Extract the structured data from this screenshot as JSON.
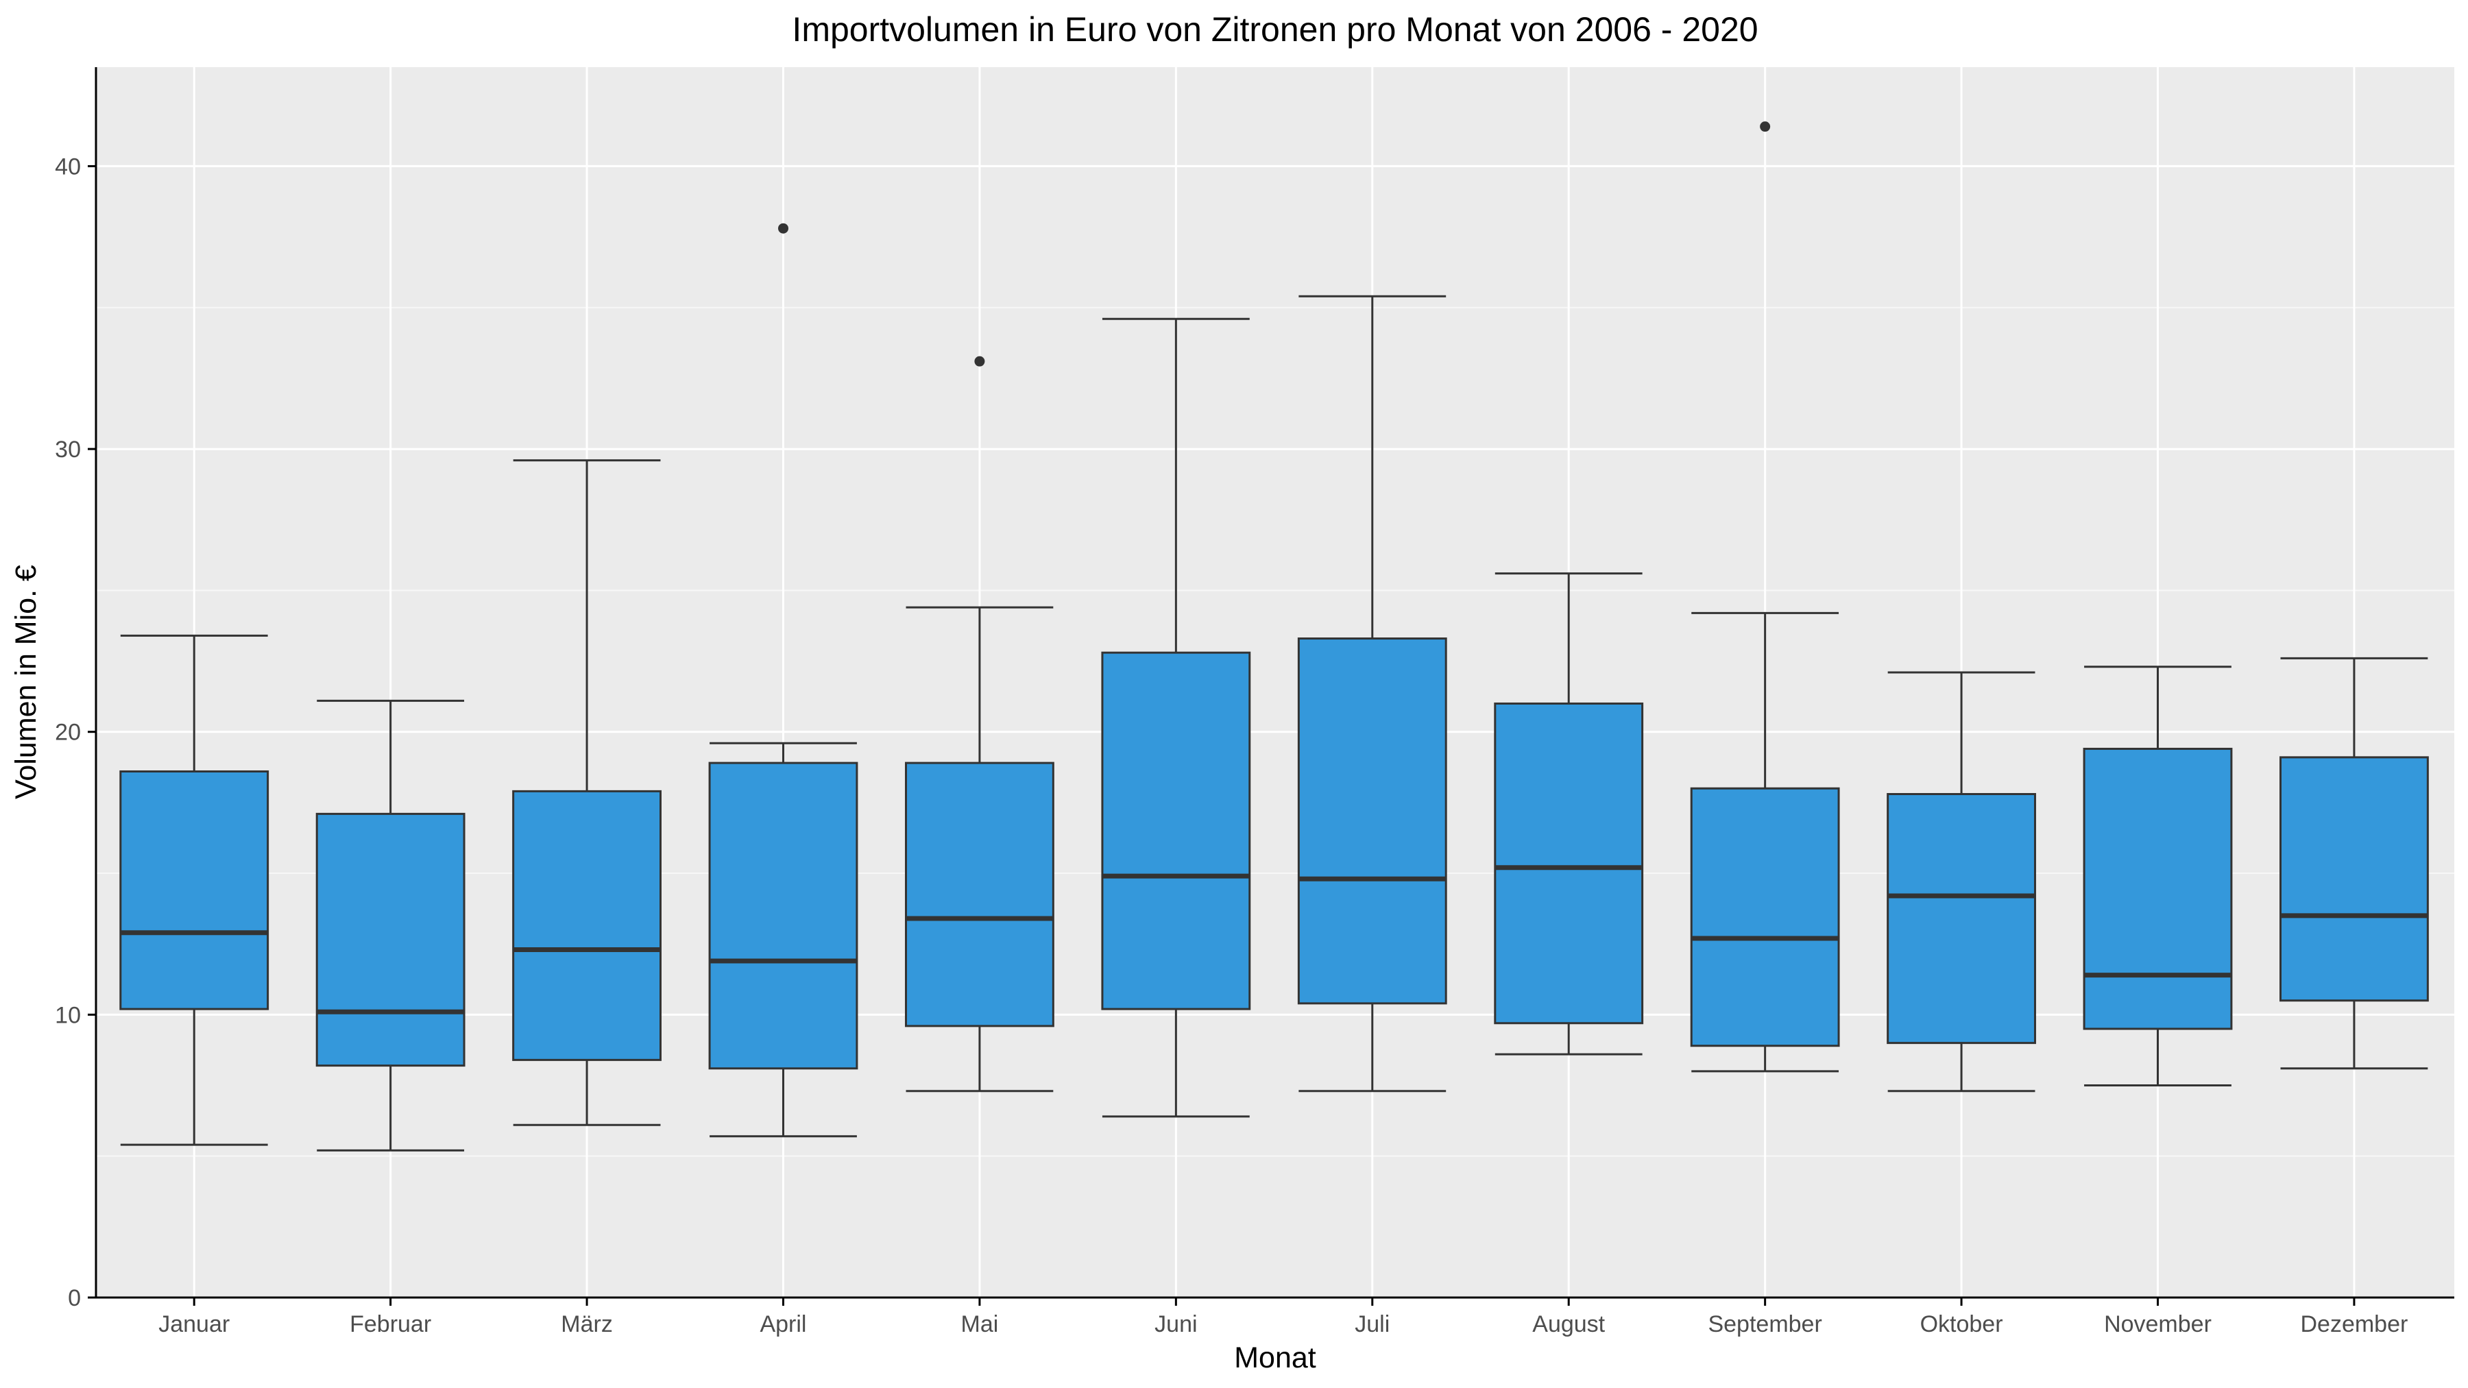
{
  "chart_data": {
    "type": "boxplot",
    "title": "Importvolumen in Euro von Zitronen pro Monat von 2006 - 2020",
    "xlabel": "Monat",
    "ylabel": "Volumen in Mio. €",
    "ylim": [
      0,
      43.5
    ],
    "yticks": [
      0,
      10,
      20,
      30,
      40
    ],
    "grid": true,
    "legend": "none",
    "colors": {
      "panel": "#ebebeb",
      "grid_major": "#ffffff",
      "grid_minor": "#f7f7f7",
      "box_fill": "#3498db",
      "box_line": "#333333",
      "axis_line": "#000000",
      "tick_label": "#4d4d4d"
    },
    "categories": [
      "Januar",
      "Februar",
      "März",
      "April",
      "Mai",
      "Juni",
      "Juli",
      "August",
      "September",
      "Oktober",
      "November",
      "Dezember"
    ],
    "boxes": [
      {
        "min": 5.4,
        "q1": 10.2,
        "median": 12.9,
        "q3": 18.6,
        "max": 23.4,
        "outliers": []
      },
      {
        "min": 5.2,
        "q1": 8.2,
        "median": 10.1,
        "q3": 17.1,
        "max": 21.1,
        "outliers": []
      },
      {
        "min": 6.1,
        "q1": 8.4,
        "median": 12.3,
        "q3": 17.9,
        "max": 29.6,
        "outliers": []
      },
      {
        "min": 5.7,
        "q1": 8.1,
        "median": 11.9,
        "q3": 18.9,
        "max": 19.6,
        "outliers": [
          37.8
        ]
      },
      {
        "min": 7.3,
        "q1": 9.6,
        "median": 13.4,
        "q3": 18.9,
        "max": 24.4,
        "outliers": [
          33.1
        ]
      },
      {
        "min": 6.4,
        "q1": 10.2,
        "median": 14.9,
        "q3": 22.8,
        "max": 34.6,
        "outliers": []
      },
      {
        "min": 7.3,
        "q1": 10.4,
        "median": 14.8,
        "q3": 23.3,
        "max": 35.4,
        "outliers": []
      },
      {
        "min": 8.6,
        "q1": 9.7,
        "median": 15.2,
        "q3": 21.0,
        "max": 25.6,
        "outliers": []
      },
      {
        "min": 8.0,
        "q1": 8.9,
        "median": 12.7,
        "q3": 18.0,
        "max": 24.2,
        "outliers": [
          41.4
        ]
      },
      {
        "min": 7.3,
        "q1": 9.0,
        "median": 14.2,
        "q3": 17.8,
        "max": 22.1,
        "outliers": []
      },
      {
        "min": 7.5,
        "q1": 9.5,
        "median": 11.4,
        "q3": 19.4,
        "max": 22.3,
        "outliers": []
      },
      {
        "min": 8.1,
        "q1": 10.5,
        "median": 13.5,
        "q3": 19.1,
        "max": 22.6,
        "outliers": []
      }
    ]
  }
}
